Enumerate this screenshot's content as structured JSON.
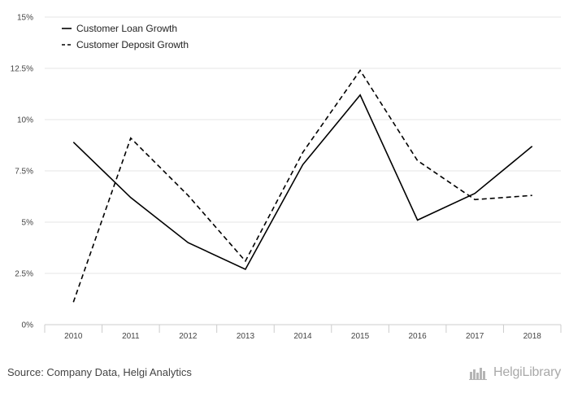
{
  "chart_data": {
    "type": "line",
    "categories": [
      "2010",
      "2011",
      "2012",
      "2013",
      "2014",
      "2015",
      "2016",
      "2017",
      "2018"
    ],
    "y_ticks": [
      "0%",
      "2.5%",
      "5%",
      "7.5%",
      "10%",
      "12.5%",
      "15%"
    ],
    "ylim": [
      0,
      15
    ],
    "grid": true,
    "legend_position": "top-left",
    "series": [
      {
        "name": "Customer Loan Growth",
        "style": "solid",
        "color": "#000000",
        "values": [
          8.9,
          6.2,
          4.0,
          2.7,
          7.8,
          11.2,
          5.1,
          6.4,
          8.7
        ]
      },
      {
        "name": "Customer Deposit Growth",
        "style": "dashed",
        "color": "#000000",
        "values": [
          1.1,
          9.1,
          6.3,
          3.1,
          8.4,
          12.4,
          8.0,
          6.1,
          6.3
        ]
      }
    ]
  },
  "footer": {
    "source": "Source: Company Data, Helgi Analytics",
    "brand": "HelgiLibrary"
  }
}
